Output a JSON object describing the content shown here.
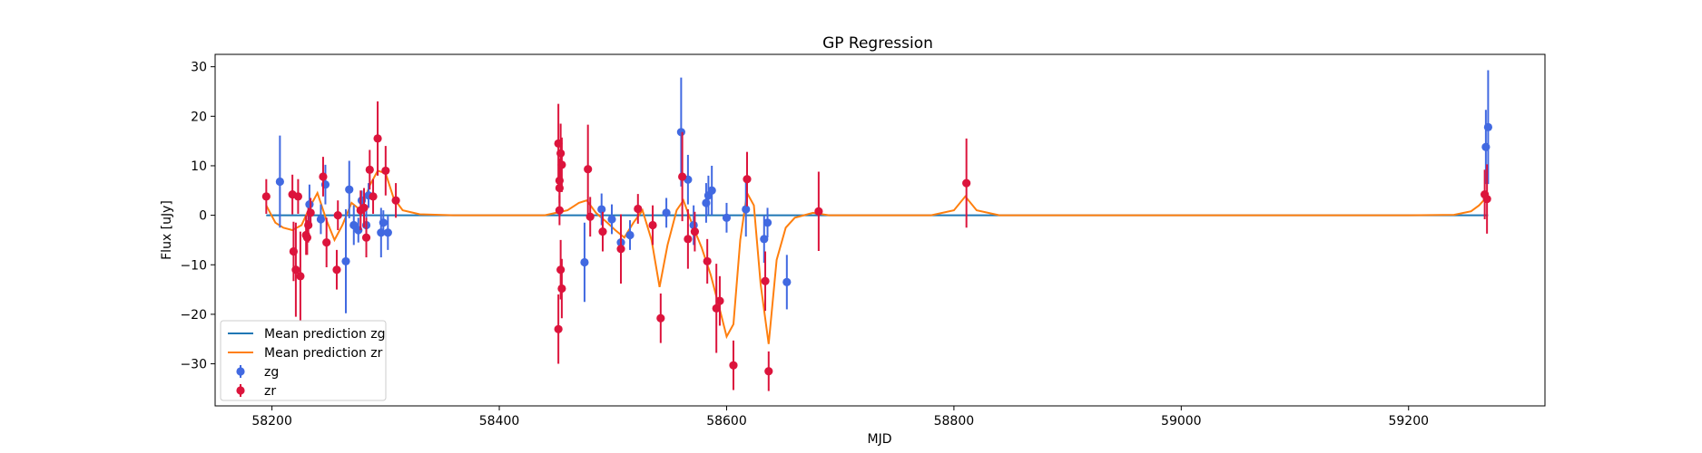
{
  "chart_data": {
    "type": "scatter",
    "title": "GP Regression",
    "xlabel": "MJD",
    "ylabel": "Flux [uJy]",
    "xlim": [
      58150,
      59320
    ],
    "ylim": [
      -38.5,
      32.5
    ],
    "xticks": [
      58200,
      58400,
      58600,
      58800,
      59000,
      59200
    ],
    "yticks": [
      -30,
      -20,
      -10,
      0,
      10,
      20,
      30
    ],
    "legend_position": "lower-left",
    "legend": [
      {
        "label": "Mean prediction zg",
        "kind": "line",
        "color": "#1f77b4"
      },
      {
        "label": "Mean prediction zr",
        "kind": "line",
        "color": "#ff7f0e"
      },
      {
        "label": "zg",
        "kind": "errorbar",
        "color": "#4169e1"
      },
      {
        "label": "zr",
        "kind": "errorbar",
        "color": "#dc143c"
      }
    ],
    "series": [
      {
        "name": "Mean prediction zg",
        "kind": "line",
        "color": "#1f77b4",
        "x": [
          58195,
          59270
        ],
        "y": [
          0,
          0
        ]
      },
      {
        "name": "Mean prediction zr",
        "kind": "line",
        "color": "#ff7f0e",
        "x": [
          58195,
          58203,
          58210,
          58218,
          58226,
          58233,
          58240,
          58248,
          58255,
          58262,
          58270,
          58278,
          58286,
          58293,
          58300,
          58307,
          58315,
          58330,
          58360,
          58400,
          58440,
          58450,
          58460,
          58470,
          58477,
          58485,
          58495,
          58502,
          58510,
          58518,
          58526,
          58534,
          58541,
          58548,
          58556,
          58562,
          58570,
          58578,
          58586,
          58594,
          58600,
          58606,
          58612,
          58618,
          58624,
          58630,
          58637,
          58644,
          58652,
          58660,
          58668,
          58676,
          58690,
          58720,
          58780,
          58800,
          58810,
          58820,
          58840,
          58900,
          59000,
          59100,
          59200,
          59240,
          59255,
          59262,
          59266,
          59270
        ],
        "y": [
          2.0,
          -1.5,
          -2.5,
          -3.0,
          -2.0,
          1.5,
          4.5,
          -1.0,
          -5.0,
          -2.0,
          2.5,
          1.0,
          6.0,
          9.0,
          8.5,
          3.5,
          1.0,
          0.2,
          0.0,
          0.0,
          0.0,
          0.5,
          1.0,
          2.5,
          3.0,
          0.5,
          -1.5,
          -3.0,
          -4.5,
          -1.5,
          1.0,
          -5.0,
          -14.5,
          -6.0,
          1.0,
          3.0,
          -2.0,
          -6.5,
          -12.0,
          -19.0,
          -24.5,
          -22.0,
          -5.0,
          4.5,
          2.0,
          -14.0,
          -26.0,
          -9.0,
          -2.5,
          -0.5,
          0.0,
          0.5,
          0.0,
          0.0,
          0.0,
          1.0,
          3.8,
          1.0,
          0.0,
          0.0,
          0.0,
          0.0,
          0.0,
          0.1,
          0.8,
          2.0,
          3.0,
          3.3
        ]
      },
      {
        "name": "zg",
        "kind": "errorbar",
        "color": "#4169e1",
        "points": [
          {
            "x": 58207,
            "y": 6.8,
            "err": 9.3
          },
          {
            "x": 58233,
            "y": 2.2,
            "err": 4.0
          },
          {
            "x": 58243,
            "y": -0.8,
            "err": 3.0
          },
          {
            "x": 58247,
            "y": 6.2,
            "err": 4.0
          },
          {
            "x": 58265,
            "y": -9.3,
            "err": 10.5
          },
          {
            "x": 58268,
            "y": 5.2,
            "err": 5.8
          },
          {
            "x": 58272,
            "y": -2.0,
            "err": 4.0
          },
          {
            "x": 58276,
            "y": -3.0,
            "err": 2.5
          },
          {
            "x": 58279,
            "y": 3.0,
            "err": 2.0
          },
          {
            "x": 58283,
            "y": -2.0,
            "err": 3.0
          },
          {
            "x": 58285,
            "y": 4.0,
            "err": 2.5
          },
          {
            "x": 58296,
            "y": -3.5,
            "err": 5.0
          },
          {
            "x": 58298,
            "y": -1.5,
            "err": 2.5
          },
          {
            "x": 58302,
            "y": -3.5,
            "err": 3.5
          },
          {
            "x": 58475,
            "y": -9.5,
            "err": 8.0
          },
          {
            "x": 58490,
            "y": 1.2,
            "err": 3.2
          },
          {
            "x": 58499,
            "y": -0.8,
            "err": 3.0
          },
          {
            "x": 58507,
            "y": -5.5,
            "err": 4.0
          },
          {
            "x": 58515,
            "y": -4.0,
            "err": 3.0
          },
          {
            "x": 58547,
            "y": 0.5,
            "err": 3.0
          },
          {
            "x": 58560,
            "y": 16.8,
            "err": 11.0
          },
          {
            "x": 58566,
            "y": 7.2,
            "err": 5.0
          },
          {
            "x": 58571,
            "y": -2.0,
            "err": 4.0
          },
          {
            "x": 58582,
            "y": 2.5,
            "err": 4.0
          },
          {
            "x": 58584,
            "y": 4.0,
            "err": 4.0
          },
          {
            "x": 58587,
            "y": 5.0,
            "err": 5.0
          },
          {
            "x": 58600,
            "y": -0.5,
            "err": 3.0
          },
          {
            "x": 58617,
            "y": 1.2,
            "err": 5.5
          },
          {
            "x": 58633,
            "y": -4.8,
            "err": 4.8
          },
          {
            "x": 58636,
            "y": -1.5,
            "err": 3.0
          },
          {
            "x": 58653,
            "y": -13.5,
            "err": 5.5
          },
          {
            "x": 59268,
            "y": 13.8,
            "err": 7.5
          },
          {
            "x": 59270,
            "y": 17.8,
            "err": 11.5
          }
        ]
      },
      {
        "name": "zr",
        "kind": "errorbar",
        "color": "#dc143c",
        "points": [
          {
            "x": 58195,
            "y": 3.8,
            "err": 3.5
          },
          {
            "x": 58218,
            "y": 4.2,
            "err": 4.0
          },
          {
            "x": 58219,
            "y": -7.3,
            "err": 6.0
          },
          {
            "x": 58221,
            "y": -11.0,
            "err": 9.5
          },
          {
            "x": 58223,
            "y": 3.8,
            "err": 3.5
          },
          {
            "x": 58225,
            "y": -12.3,
            "err": 9.0
          },
          {
            "x": 58230,
            "y": -4.0,
            "err": 4.0
          },
          {
            "x": 58231,
            "y": -4.5,
            "err": 3.5
          },
          {
            "x": 58232,
            "y": -2.0,
            "err": 3.5
          },
          {
            "x": 58234,
            "y": 0.5,
            "err": 3.0
          },
          {
            "x": 58245,
            "y": 7.8,
            "err": 4.0
          },
          {
            "x": 58248,
            "y": -5.5,
            "err": 5.0
          },
          {
            "x": 58257,
            "y": -11.0,
            "err": 4.0
          },
          {
            "x": 58258,
            "y": 0.0,
            "err": 3.0
          },
          {
            "x": 58278,
            "y": 1.0,
            "err": 4.0
          },
          {
            "x": 58281,
            "y": 1.5,
            "err": 4.0
          },
          {
            "x": 58283,
            "y": -4.5,
            "err": 4.0
          },
          {
            "x": 58286,
            "y": 9.2,
            "err": 4.0
          },
          {
            "x": 58289,
            "y": 3.8,
            "err": 3.5
          },
          {
            "x": 58293,
            "y": 15.5,
            "err": 7.5
          },
          {
            "x": 58300,
            "y": 9.0,
            "err": 5.0
          },
          {
            "x": 58309,
            "y": 3.0,
            "err": 3.5
          },
          {
            "x": 58452,
            "y": -23.0,
            "err": 7.0
          },
          {
            "x": 58452,
            "y": 14.5,
            "err": 8.0
          },
          {
            "x": 58453,
            "y": 7.0,
            "err": 4.5
          },
          {
            "x": 58453,
            "y": 5.5,
            "err": 4.0
          },
          {
            "x": 58453,
            "y": 1.0,
            "err": 3.0
          },
          {
            "x": 58454,
            "y": 12.5,
            "err": 6.0
          },
          {
            "x": 58454,
            "y": -11.0,
            "err": 6.0
          },
          {
            "x": 58455,
            "y": 10.2,
            "err": 5.5
          },
          {
            "x": 58455,
            "y": -14.8,
            "err": 6.0
          },
          {
            "x": 58478,
            "y": 9.3,
            "err": 9.0
          },
          {
            "x": 58480,
            "y": -0.3,
            "err": 4.0
          },
          {
            "x": 58491,
            "y": -3.3,
            "err": 4.0
          },
          {
            "x": 58507,
            "y": -6.8,
            "err": 7.0
          },
          {
            "x": 58522,
            "y": 1.3,
            "err": 3.0
          },
          {
            "x": 58535,
            "y": -2.0,
            "err": 4.0
          },
          {
            "x": 58542,
            "y": -20.8,
            "err": 5.0
          },
          {
            "x": 58561,
            "y": 7.8,
            "err": 9.0
          },
          {
            "x": 58566,
            "y": -4.8,
            "err": 6.0
          },
          {
            "x": 58572,
            "y": -3.3,
            "err": 4.0
          },
          {
            "x": 58583,
            "y": -9.3,
            "err": 4.5
          },
          {
            "x": 58591,
            "y": -18.8,
            "err": 9.0
          },
          {
            "x": 58594,
            "y": -17.3,
            "err": 5.0
          },
          {
            "x": 58606,
            "y": -30.3,
            "err": 5.0
          },
          {
            "x": 58618,
            "y": 7.3,
            "err": 5.5
          },
          {
            "x": 58634,
            "y": -13.3,
            "err": 6.0
          },
          {
            "x": 58637,
            "y": -31.5,
            "err": 4.0
          },
          {
            "x": 58681,
            "y": 0.8,
            "err": 8.0
          },
          {
            "x": 58811,
            "y": 6.5,
            "err": 9.0
          },
          {
            "x": 59267,
            "y": 4.2,
            "err": 5.0
          },
          {
            "x": 59269,
            "y": 3.3,
            "err": 7.0
          }
        ]
      }
    ]
  }
}
